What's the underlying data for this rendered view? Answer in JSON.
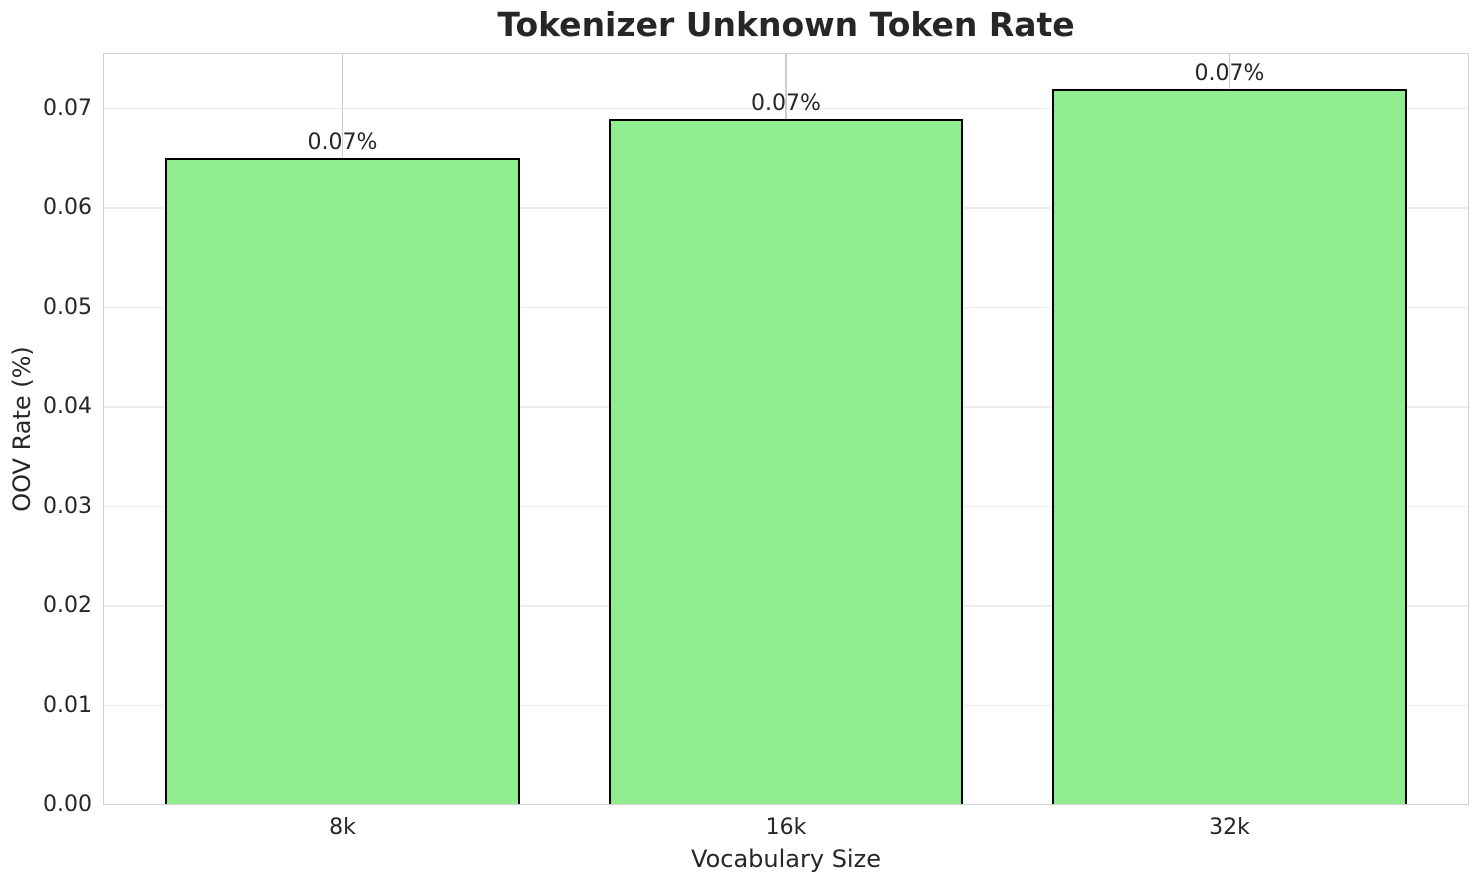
{
  "chart_data": {
    "type": "bar",
    "title": "Tokenizer Unknown Token Rate",
    "xlabel": "Vocabulary Size",
    "ylabel": "OOV Rate (%)",
    "categories": [
      "8k",
      "16k",
      "32k"
    ],
    "values": [
      0.065,
      0.069,
      0.072
    ],
    "bar_labels": [
      "0.07%",
      "0.07%",
      "0.07%"
    ],
    "ylim": [
      0,
      0.0756
    ],
    "yticks": [
      {
        "label": "0.00",
        "value": 0.0
      },
      {
        "label": "0.01",
        "value": 0.01
      },
      {
        "label": "0.02",
        "value": 0.02
      },
      {
        "label": "0.03",
        "value": 0.03
      },
      {
        "label": "0.04",
        "value": 0.04
      },
      {
        "label": "0.05",
        "value": 0.05
      },
      {
        "label": "0.06",
        "value": 0.06
      },
      {
        "label": "0.07",
        "value": 0.07
      }
    ],
    "grid": "both",
    "legend_position": "none",
    "colors": {
      "bar_fill": "#90EE90",
      "bar_edge": "#000000",
      "hgrid": "#ededed",
      "vgrid": "#cccccc",
      "spine": "#d0d0d0",
      "text": "#262626",
      "background": "#ffffff"
    }
  }
}
